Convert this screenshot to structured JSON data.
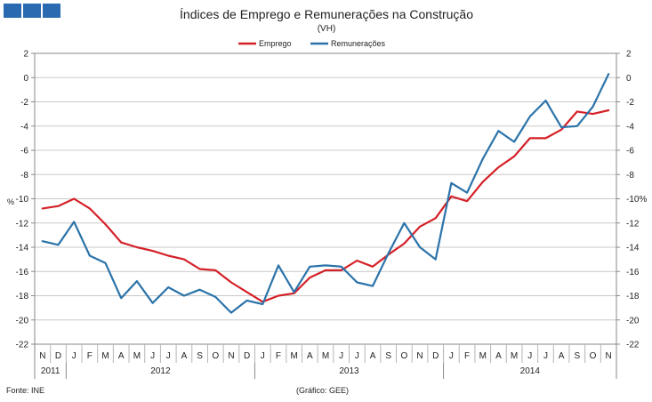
{
  "brand_color": "#2a6ab1",
  "chart_data": {
    "type": "line",
    "title": "Índices de Emprego e Remunerações na Construção",
    "subtitle": "(VH)",
    "ylabel": "%",
    "ylim": [
      -22,
      2
    ],
    "yticks": [
      2,
      0,
      -2,
      -4,
      -6,
      -8,
      -10,
      -12,
      -14,
      -16,
      -18,
      -20,
      -22
    ],
    "ytick_labels_left": [
      "2",
      "0",
      "-2",
      "-4",
      "-6",
      "-8",
      "-10",
      "-12",
      "-14",
      "-16",
      "-18",
      "-20",
      "-22"
    ],
    "ytick_labels_right": [
      "2",
      "0",
      "-2",
      "-4",
      "-6",
      "-8",
      "-10%",
      "-12",
      "-14",
      "-16",
      "-18",
      "-20",
      "-22"
    ],
    "grid": true,
    "legend_position": "top-center",
    "months": [
      "N",
      "D",
      "J",
      "F",
      "M",
      "A",
      "M",
      "J",
      "J",
      "A",
      "S",
      "O",
      "N",
      "D",
      "J",
      "F",
      "M",
      "A",
      "M",
      "J",
      "J",
      "A",
      "S",
      "O",
      "N",
      "D",
      "J",
      "F",
      "M",
      "A",
      "M",
      "J",
      "J",
      "A",
      "S",
      "O",
      "N"
    ],
    "years": [
      {
        "label": "2011",
        "start": 0,
        "count": 2
      },
      {
        "label": "2012",
        "start": 2,
        "count": 12
      },
      {
        "label": "2013",
        "start": 14,
        "count": 12
      },
      {
        "label": "2014",
        "start": 26,
        "count": 11
      }
    ],
    "series": [
      {
        "name": "Emprego",
        "color": "#d42027",
        "values": [
          -10.8,
          -10.6,
          -10.0,
          -10.8,
          -12.1,
          -13.6,
          -14.0,
          -14.3,
          -14.7,
          -15.0,
          -15.8,
          -15.9,
          -16.9,
          -17.7,
          -18.5,
          -18.0,
          -17.8,
          -16.5,
          -15.9,
          -15.9,
          -15.1,
          -15.6,
          -14.6,
          -13.7,
          -12.3,
          -11.6,
          -9.8,
          -10.2,
          -8.6,
          -7.4,
          -6.5,
          -5.0,
          -5.0,
          -4.3,
          -2.8,
          -3.0,
          -2.7
        ]
      },
      {
        "name": "Remunerações",
        "color": "#2b73a9",
        "values": [
          -13.5,
          -13.8,
          -11.9,
          -14.7,
          -15.3,
          -18.2,
          -16.8,
          -18.6,
          -17.3,
          -18.0,
          -17.5,
          -18.1,
          -19.4,
          -18.4,
          -18.7,
          -15.5,
          -17.7,
          -15.6,
          -15.5,
          -15.6,
          -16.9,
          -17.2,
          -14.5,
          -12.0,
          -14.0,
          -15.0,
          -8.7,
          -9.5,
          -6.7,
          -4.4,
          -5.3,
          -3.2,
          -1.9,
          -4.1,
          -4.0,
          -2.4,
          0.3
        ]
      }
    ],
    "source": "Fonte: INE",
    "credit": "(Gráfico: GEE)"
  }
}
